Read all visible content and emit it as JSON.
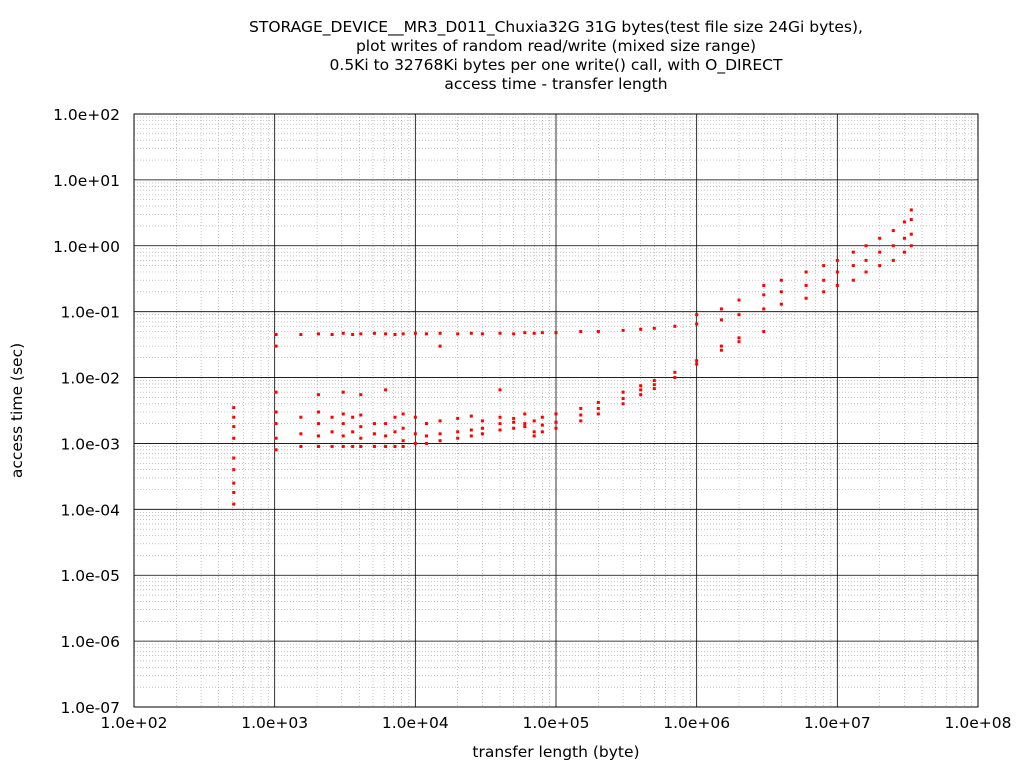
{
  "chart_data": {
    "type": "scatter",
    "title_lines": [
      "STORAGE_DEVICE__MR3_D011_Chuxia32G 31G bytes(test file size 24Gi bytes),",
      "plot writes of random read/write (mixed size range)",
      "0.5Ki to 32768Ki bytes per one write() call, with O_DIRECT",
      "access time - transfer length"
    ],
    "xlabel": "transfer length (byte)",
    "ylabel": "access time (sec)",
    "x_scale": "log",
    "y_scale": "log",
    "xlim": [
      100,
      100000000
    ],
    "ylim": [
      1e-07,
      100
    ],
    "x_ticks": [
      "1.0e+02",
      "1.0e+03",
      "1.0e+04",
      "1.0e+05",
      "1.0e+06",
      "1.0e+07",
      "1.0e+08"
    ],
    "y_ticks": [
      "1.0e+02",
      "1.0e+01",
      "1.0e+00",
      "1.0e-01",
      "1.0e-02",
      "1.0e-03",
      "1.0e-04",
      "1.0e-05",
      "1.0e-06",
      "1.0e-07"
    ],
    "grid": true,
    "point_color": "#ff0000",
    "series": [
      {
        "points": [
          [
            512,
            0.00012
          ],
          [
            512,
            0.00018
          ],
          [
            512,
            0.00025
          ],
          [
            512,
            0.0004
          ],
          [
            512,
            0.0006
          ],
          [
            512,
            0.0012
          ],
          [
            512,
            0.0018
          ],
          [
            512,
            0.0025
          ],
          [
            512,
            0.0035
          ],
          [
            1024,
            0.0008
          ],
          [
            1024,
            0.0012
          ],
          [
            1024,
            0.002
          ],
          [
            1024,
            0.003
          ],
          [
            1024,
            0.006
          ],
          [
            1024,
            0.03
          ],
          [
            1024,
            0.045
          ],
          [
            1536,
            0.0009
          ],
          [
            1536,
            0.0014
          ],
          [
            1536,
            0.0025
          ],
          [
            1536,
            0.045
          ],
          [
            2048,
            0.0009
          ],
          [
            2048,
            0.0013
          ],
          [
            2048,
            0.002
          ],
          [
            2048,
            0.003
          ],
          [
            2048,
            0.0055
          ],
          [
            2048,
            0.046
          ],
          [
            2560,
            0.0009
          ],
          [
            2560,
            0.0015
          ],
          [
            2560,
            0.0025
          ],
          [
            2560,
            0.045
          ],
          [
            3072,
            0.0009
          ],
          [
            3072,
            0.0013
          ],
          [
            3072,
            0.002
          ],
          [
            3072,
            0.0028
          ],
          [
            3072,
            0.006
          ],
          [
            3072,
            0.047
          ],
          [
            3584,
            0.0009
          ],
          [
            3584,
            0.0015
          ],
          [
            3584,
            0.0025
          ],
          [
            3584,
            0.045
          ],
          [
            4096,
            0.0009
          ],
          [
            4096,
            0.0012
          ],
          [
            4096,
            0.0018
          ],
          [
            4096,
            0.0027
          ],
          [
            4096,
            0.0055
          ],
          [
            4096,
            0.046
          ],
          [
            5120,
            0.0009
          ],
          [
            5120,
            0.0014
          ],
          [
            5120,
            0.002
          ],
          [
            5120,
            0.047
          ],
          [
            6144,
            0.0009
          ],
          [
            6144,
            0.0013
          ],
          [
            6144,
            0.002
          ],
          [
            6144,
            0.0065
          ],
          [
            6144,
            0.046
          ],
          [
            7168,
            0.0009
          ],
          [
            7168,
            0.0015
          ],
          [
            7168,
            0.0025
          ],
          [
            7168,
            0.045
          ],
          [
            8192,
            0.0009
          ],
          [
            8192,
            0.0011
          ],
          [
            8192,
            0.0017
          ],
          [
            8192,
            0.0028
          ],
          [
            8192,
            0.046
          ],
          [
            10000,
            0.001
          ],
          [
            10000,
            0.0014
          ],
          [
            10000,
            0.0025
          ],
          [
            10000,
            0.047
          ],
          [
            12000,
            0.001
          ],
          [
            12000,
            0.0013
          ],
          [
            12000,
            0.002
          ],
          [
            12000,
            0.046
          ],
          [
            15000,
            0.0011
          ],
          [
            15000,
            0.0014
          ],
          [
            15000,
            0.0022
          ],
          [
            15000,
            0.03
          ],
          [
            15000,
            0.047
          ],
          [
            20000,
            0.0012
          ],
          [
            20000,
            0.0015
          ],
          [
            20000,
            0.0024
          ],
          [
            20000,
            0.046
          ],
          [
            25000,
            0.0013
          ],
          [
            25000,
            0.0016
          ],
          [
            25000,
            0.0026
          ],
          [
            25000,
            0.047
          ],
          [
            30000,
            0.0014
          ],
          [
            30000,
            0.0017
          ],
          [
            30000,
            0.0022
          ],
          [
            30000,
            0.046
          ],
          [
            40000,
            0.0016
          ],
          [
            40000,
            0.002
          ],
          [
            40000,
            0.0025
          ],
          [
            40000,
            0.0065
          ],
          [
            40000,
            0.047
          ],
          [
            50000,
            0.0017
          ],
          [
            50000,
            0.0021
          ],
          [
            50000,
            0.0024
          ],
          [
            50000,
            0.046
          ],
          [
            60000,
            0.0018
          ],
          [
            60000,
            0.002
          ],
          [
            60000,
            0.0028
          ],
          [
            60000,
            0.048
          ],
          [
            70000,
            0.0013
          ],
          [
            70000,
            0.0015
          ],
          [
            70000,
            0.0022
          ],
          [
            70000,
            0.047
          ],
          [
            80000,
            0.0015
          ],
          [
            80000,
            0.0019
          ],
          [
            80000,
            0.0025
          ],
          [
            80000,
            0.048
          ],
          [
            100000,
            0.0017
          ],
          [
            100000,
            0.0021
          ],
          [
            100000,
            0.0028
          ],
          [
            100000,
            0.048
          ],
          [
            150000,
            0.0022
          ],
          [
            150000,
            0.0027
          ],
          [
            150000,
            0.0034
          ],
          [
            150000,
            0.05
          ],
          [
            200000,
            0.0028
          ],
          [
            200000,
            0.0034
          ],
          [
            200000,
            0.0042
          ],
          [
            200000,
            0.05
          ],
          [
            300000,
            0.004
          ],
          [
            300000,
            0.0048
          ],
          [
            300000,
            0.006
          ],
          [
            300000,
            0.052
          ],
          [
            400000,
            0.0055
          ],
          [
            400000,
            0.0065
          ],
          [
            400000,
            0.0075
          ],
          [
            400000,
            0.054
          ],
          [
            500000,
            0.0068
          ],
          [
            500000,
            0.0078
          ],
          [
            500000,
            0.009
          ],
          [
            500000,
            0.056
          ],
          [
            700000,
            0.01
          ],
          [
            700000,
            0.012
          ],
          [
            700000,
            0.06
          ],
          [
            1000000,
            0.016
          ],
          [
            1000000,
            0.018
          ],
          [
            1000000,
            0.065
          ],
          [
            1000000,
            0.09
          ],
          [
            1500000,
            0.026
          ],
          [
            1500000,
            0.03
          ],
          [
            1500000,
            0.075
          ],
          [
            1500000,
            0.11
          ],
          [
            2000000,
            0.035
          ],
          [
            2000000,
            0.04
          ],
          [
            2000000,
            0.09
          ],
          [
            2000000,
            0.15
          ],
          [
            3000000,
            0.05
          ],
          [
            3000000,
            0.11
          ],
          [
            3000000,
            0.18
          ],
          [
            3000000,
            0.25
          ],
          [
            4000000,
            0.13
          ],
          [
            4000000,
            0.2
          ],
          [
            4000000,
            0.3
          ],
          [
            6000000,
            0.16
          ],
          [
            6000000,
            0.25
          ],
          [
            6000000,
            0.4
          ],
          [
            8000000,
            0.2
          ],
          [
            8000000,
            0.3
          ],
          [
            8000000,
            0.5
          ],
          [
            10000000,
            0.25
          ],
          [
            10000000,
            0.4
          ],
          [
            10000000,
            0.6
          ],
          [
            13000000,
            0.3
          ],
          [
            13000000,
            0.5
          ],
          [
            13000000,
            0.8
          ],
          [
            16000000,
            0.4
          ],
          [
            16000000,
            0.6
          ],
          [
            16000000,
            1.0
          ],
          [
            20000000,
            0.5
          ],
          [
            20000000,
            0.8
          ],
          [
            20000000,
            1.3
          ],
          [
            25000000,
            0.6
          ],
          [
            25000000,
            1.0
          ],
          [
            25000000,
            1.7
          ],
          [
            30000000,
            0.8
          ],
          [
            30000000,
            1.3
          ],
          [
            30000000,
            2.3
          ],
          [
            33554432,
            1.0
          ],
          [
            33554432,
            1.5
          ],
          [
            33554432,
            2.5
          ],
          [
            33554432,
            3.5
          ]
        ]
      }
    ]
  }
}
